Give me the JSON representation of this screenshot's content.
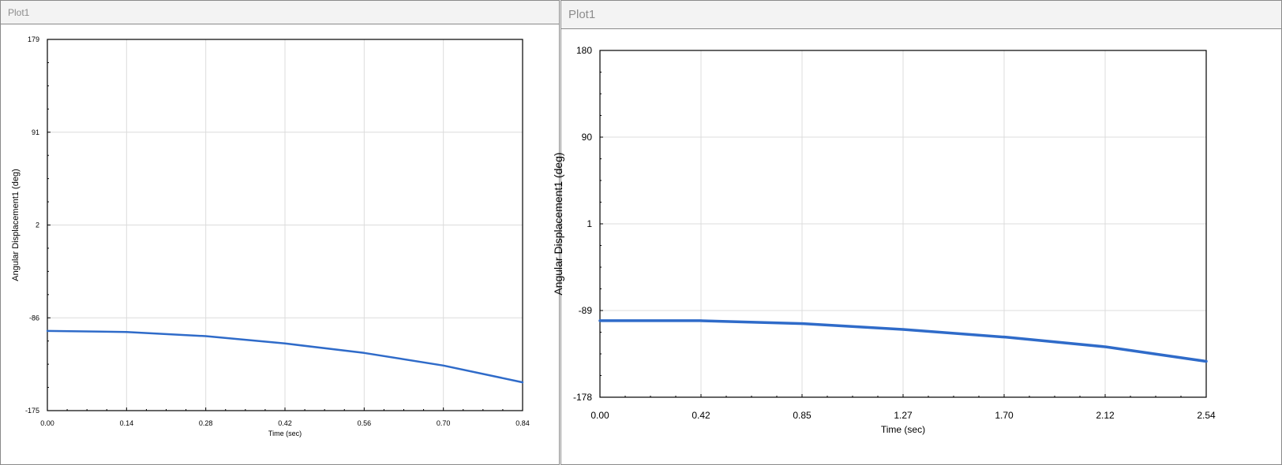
{
  "panels": [
    {
      "title": "Plot1"
    },
    {
      "title": "Plot1"
    }
  ],
  "chart_data": [
    {
      "type": "line",
      "xlabel": "Time (sec)",
      "ylabel": "Angular Displacement1 (deg)",
      "xlim": [
        0.0,
        0.84
      ],
      "ylim": [
        -175,
        179
      ],
      "x_ticks": [
        "0.00",
        "0.14",
        "0.28",
        "0.42",
        "0.56",
        "0.70",
        "0.84"
      ],
      "y_ticks": [
        "179",
        "91",
        "2",
        "-86",
        "-175"
      ],
      "grid": true,
      "series": [
        {
          "color": "#2f6bc9",
          "x": [
            0.0,
            0.14,
            0.28,
            0.42,
            0.56,
            0.7,
            0.84
          ],
          "y": [
            -99,
            -100,
            -104,
            -111,
            -120,
            -132,
            -148
          ]
        }
      ]
    },
    {
      "type": "line",
      "xlabel": "Time (sec)",
      "ylabel": "Angular Displacement1 (deg)",
      "xlim": [
        0.0,
        2.54
      ],
      "ylim": [
        -178,
        180
      ],
      "x_ticks": [
        "0.00",
        "0.42",
        "0.85",
        "1.27",
        "1.70",
        "2.12",
        "2.54"
      ],
      "y_ticks": [
        "180",
        "90",
        "1",
        "-89",
        "-178"
      ],
      "grid": true,
      "series": [
        {
          "color": "#2f6bc9",
          "x": [
            0.0,
            0.42,
            0.85,
            1.27,
            1.7,
            2.12,
            2.54
          ],
          "y": [
            -99,
            -99,
            -102,
            -108,
            -116,
            -126,
            -141
          ]
        }
      ]
    }
  ]
}
